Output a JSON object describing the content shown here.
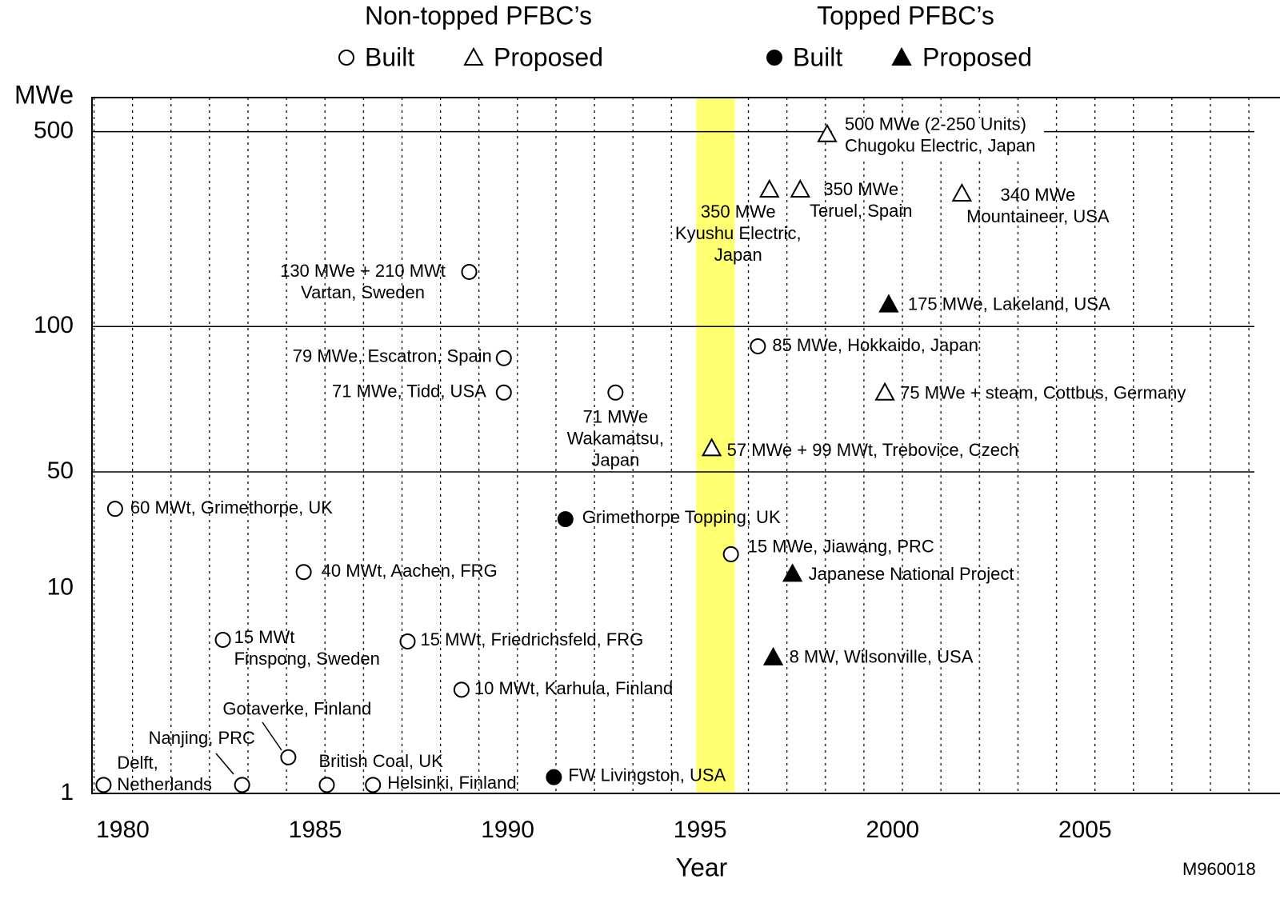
{
  "chart_data": {
    "type": "scatter",
    "xlabel": "Year",
    "ylabel": "MWe",
    "xlim": [
      1979.2,
      2009.4
    ],
    "xticks": [
      1980,
      1985,
      1990,
      1995,
      2000,
      2005
    ],
    "ylim": [
      1,
      650
    ],
    "yticks": [
      1,
      10,
      50,
      100,
      500
    ],
    "hlines": [
      50,
      100,
      500
    ],
    "highlight": {
      "range": [
        1994.9,
        1995.9
      ],
      "color": "#ffff70"
    },
    "note": "M960018",
    "groups": [
      {
        "title": "Non-topped PFBC’s",
        "series": [
          {
            "name": "Built",
            "marker": "circle",
            "filled": false,
            "x": [
              1979.5,
              1983.1,
              1984.3,
              1985.3,
              1986.5,
              1982.6,
              1987.4,
              1988.8,
              1984.7,
              1979.8,
              1989.0,
              1989.9,
              1989.9,
              1992.8,
              1996.5,
              1995.8
            ],
            "values": [
              1.1,
              1.1,
              1.5,
              1.1,
              1.1,
              5.6,
              5.5,
              3.2,
              12.5,
              30,
              157,
              86,
              73,
              73,
              91,
              16
            ],
            "labels": [
              [
                "Delft,",
                "Netherlands"
              ],
              [
                "Nanjing, PRC"
              ],
              [
                "Gotaverke, Finland"
              ],
              [
                "British Coal, UK"
              ],
              [
                "Helsinki, Finland"
              ],
              [
                "15 MWt",
                "Finspong, Sweden"
              ],
              [
                "15 MWt, Friedrichsfeld, FRG"
              ],
              [
                "10 MWt, Karhula, Finland"
              ],
              [
                "40 MWt, Aachen, FRG"
              ],
              [
                "60 MWt, Grimethorpe, UK"
              ],
              [
                "130 MWe + 210 MWt",
                "Vartan, Sweden"
              ],
              [
                "79 MWe, Escatron, Spain"
              ],
              [
                "71 MWe, Tidd, USA"
              ],
              [
                "71 MWe",
                "Wakamatsu,",
                "Japan"
              ],
              [
                "85 MWe, Hokkaido, Japan"
              ],
              [
                "15 MWe, Jiawang, PRC"
              ]
            ]
          },
          {
            "name": "Proposed",
            "marker": "triangle",
            "filled": false,
            "x": [
              1998.3,
              1996.8,
              1997.6,
              2001.8,
              1999.8,
              1995.3
            ],
            "values": [
              490,
              310,
              310,
              300,
              73,
              56
            ],
            "labels": [
              [
                "500 MWe (2-250 Units)",
                "Chugoku Electric, Japan"
              ],
              [
                "350 MWe",
                "Kyushu Electric,",
                "Japan"
              ],
              [
                "350 MWe",
                "Teruel, Spain"
              ],
              [
                "340 MWe",
                "Mountaineer, USA"
              ],
              [
                "75 MWe + steam, Cottbus, Germany"
              ],
              [
                "57 MWe + 99 MWt, Trebovice, Czech"
              ]
            ]
          }
        ]
      },
      {
        "title": "Topped PFBC’s",
        "series": [
          {
            "name": "Built",
            "marker": "circle",
            "filled": true,
            "x": [
              1991.5,
              1991.2
            ],
            "values": [
              26,
              1.2
            ],
            "labels": [
              [
                "Grimethorpe Topping, UK"
              ],
              [
                "FW Livingston, USA"
              ]
            ]
          },
          {
            "name": "Proposed",
            "marker": "triangle",
            "filled": true,
            "x": [
              1999.9,
              1997.4,
              1996.9
            ],
            "values": [
              120,
              12.2,
              4.6
            ],
            "labels": [
              [
                "175 MWe, Lakeland, USA"
              ],
              [
                "Japanese National Project"
              ],
              [
                "8 MW, Wilsonville, USA"
              ]
            ]
          }
        ]
      }
    ]
  }
}
